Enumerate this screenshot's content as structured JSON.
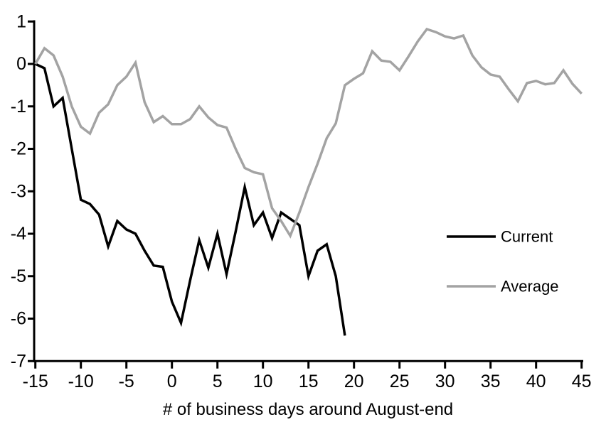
{
  "chart_data": {
    "type": "line",
    "title": "",
    "xlabel": "# of business days around August-end",
    "ylabel": "",
    "xlim": [
      -15,
      45
    ],
    "ylim": [
      -7,
      1
    ],
    "x_ticks": [
      -15,
      -10,
      -5,
      0,
      5,
      10,
      15,
      20,
      25,
      30,
      35,
      40,
      45
    ],
    "y_ticks": [
      1,
      0,
      -1,
      -2,
      -3,
      -4,
      -5,
      -6,
      -7
    ],
    "grid": false,
    "legend_position": "right-middle",
    "series": [
      {
        "name": "Current",
        "color": "#000000",
        "x": [
          -15,
          -14,
          -13,
          -12,
          -11,
          -10,
          -9,
          -8,
          -7,
          -6,
          -5,
          -4,
          -3,
          -2,
          -1,
          0,
          1,
          2,
          3,
          4,
          5,
          6,
          7,
          8,
          9,
          10,
          11,
          12,
          13,
          14,
          15,
          16,
          17,
          18,
          19
        ],
        "values": [
          0,
          -0.1,
          -1.0,
          -0.8,
          -2.0,
          -3.2,
          -3.3,
          -3.55,
          -4.3,
          -3.7,
          -3.9,
          -4.0,
          -4.4,
          -4.75,
          -4.78,
          -5.6,
          -6.1,
          -5.1,
          -4.15,
          -4.8,
          -4.0,
          -4.95,
          -3.95,
          -2.9,
          -3.8,
          -3.5,
          -4.1,
          -3.5,
          -3.65,
          -3.8,
          -5.0,
          -4.4,
          -4.25,
          -5.0,
          -6.4
        ]
      },
      {
        "name": "Average",
        "color": "#A3A3A3",
        "x": [
          -15,
          -14,
          -13,
          -12,
          -11,
          -10,
          -9,
          -8,
          -7,
          -6,
          -5,
          -4,
          -3,
          -2,
          -1,
          0,
          1,
          2,
          3,
          4,
          5,
          6,
          7,
          8,
          9,
          10,
          11,
          12,
          13,
          14,
          15,
          16,
          17,
          18,
          19,
          20,
          21,
          22,
          23,
          24,
          25,
          26,
          27,
          28,
          29,
          30,
          31,
          32,
          33,
          34,
          35,
          36,
          37,
          38,
          39,
          40,
          41,
          42,
          43,
          44,
          45
        ],
        "values": [
          0,
          0.37,
          0.2,
          -0.3,
          -1.0,
          -1.48,
          -1.64,
          -1.15,
          -0.95,
          -0.5,
          -0.3,
          0.03,
          -0.9,
          -1.37,
          -1.23,
          -1.42,
          -1.42,
          -1.3,
          -1.0,
          -1.26,
          -1.44,
          -1.5,
          -2.0,
          -2.45,
          -2.55,
          -2.6,
          -3.4,
          -3.7,
          -4.05,
          -3.5,
          -2.9,
          -2.35,
          -1.75,
          -1.4,
          -0.5,
          -0.35,
          -0.22,
          0.3,
          0.08,
          0.05,
          -0.15,
          0.18,
          0.53,
          0.82,
          0.75,
          0.65,
          0.6,
          0.67,
          0.2,
          -0.08,
          -0.25,
          -0.3,
          -0.6,
          -0.88,
          -0.45,
          -0.4,
          -0.48,
          -0.45,
          -0.15,
          -0.47,
          -0.7
        ]
      }
    ]
  },
  "legend": {
    "current_label": "Current",
    "average_label": "Average"
  },
  "colors": {
    "current": "#000000",
    "average": "#A3A3A3",
    "axis": "#000000",
    "text": "#000000",
    "background": "#ffffff"
  }
}
